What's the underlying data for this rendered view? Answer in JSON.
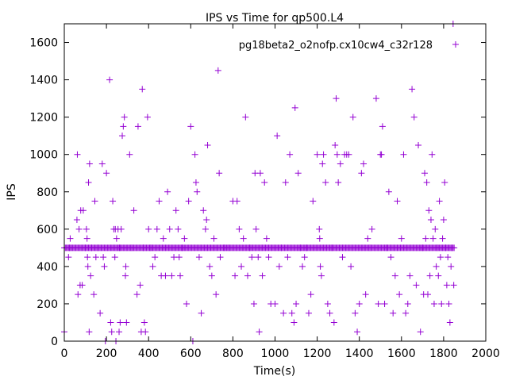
{
  "chart_data": {
    "type": "scatter",
    "title": "IPS vs Time for qp500.L4",
    "xlabel": "Time(s)",
    "ylabel": "IPS",
    "xlim": [
      0,
      2000
    ],
    "ylim": [
      0,
      1700
    ],
    "x_ticks": [
      0,
      200,
      400,
      600,
      800,
      1000,
      1200,
      1400,
      1600,
      1800,
      2000
    ],
    "y_ticks": [
      0,
      200,
      400,
      600,
      800,
      1000,
      1200,
      1400,
      1600
    ],
    "grid": false,
    "legend_position": "top-right",
    "marker": "+",
    "series": [
      {
        "name": "pg18beta2_o2nofp.cx10cw4_c32r128",
        "color": "#9400d3",
        "points": [
          [
            0,
            50
          ],
          [
            20,
            450
          ],
          [
            25,
            500
          ],
          [
            28,
            550
          ],
          [
            60,
            650
          ],
          [
            62,
            1000
          ],
          [
            65,
            250
          ],
          [
            70,
            600
          ],
          [
            75,
            300
          ],
          [
            78,
            700
          ],
          [
            85,
            300
          ],
          [
            90,
            700
          ],
          [
            100,
            500
          ],
          [
            105,
            600
          ],
          [
            108,
            550
          ],
          [
            110,
            450
          ],
          [
            112,
            400
          ],
          [
            115,
            850
          ],
          [
            118,
            50
          ],
          [
            120,
            950
          ],
          [
            125,
            350
          ],
          [
            130,
            500
          ],
          [
            140,
            250
          ],
          [
            145,
            750
          ],
          [
            150,
            450
          ],
          [
            160,
            500
          ],
          [
            170,
            150
          ],
          [
            180,
            950
          ],
          [
            185,
            450
          ],
          [
            190,
            400
          ],
          [
            195,
            0
          ],
          [
            200,
            900
          ],
          [
            215,
            1400
          ],
          [
            220,
            100
          ],
          [
            225,
            50
          ],
          [
            230,
            750
          ],
          [
            235,
            600
          ],
          [
            240,
            450
          ],
          [
            242,
            600
          ],
          [
            245,
            0
          ],
          [
            248,
            550
          ],
          [
            255,
            600
          ],
          [
            260,
            50
          ],
          [
            262,
            500
          ],
          [
            265,
            100
          ],
          [
            270,
            600
          ],
          [
            275,
            1100
          ],
          [
            280,
            1150
          ],
          [
            285,
            1200
          ],
          [
            290,
            350
          ],
          [
            292,
            400
          ],
          [
            295,
            100
          ],
          [
            310,
            1000
          ],
          [
            320,
            500
          ],
          [
            330,
            700
          ],
          [
            345,
            250
          ],
          [
            350,
            1150
          ],
          [
            360,
            300
          ],
          [
            365,
            50
          ],
          [
            370,
            1350
          ],
          [
            375,
            500
          ],
          [
            380,
            100
          ],
          [
            385,
            50
          ],
          [
            395,
            1200
          ],
          [
            400,
            600
          ],
          [
            410,
            500
          ],
          [
            420,
            400
          ],
          [
            430,
            450
          ],
          [
            440,
            600
          ],
          [
            450,
            750
          ],
          [
            460,
            350
          ],
          [
            470,
            550
          ],
          [
            480,
            350
          ],
          [
            490,
            800
          ],
          [
            500,
            600
          ],
          [
            510,
            350
          ],
          [
            520,
            450
          ],
          [
            530,
            700
          ],
          [
            540,
            600
          ],
          [
            545,
            450
          ],
          [
            550,
            350
          ],
          [
            560,
            500
          ],
          [
            570,
            550
          ],
          [
            580,
            200
          ],
          [
            590,
            750
          ],
          [
            600,
            1150
          ],
          [
            610,
            0
          ],
          [
            620,
            1000
          ],
          [
            625,
            850
          ],
          [
            630,
            800
          ],
          [
            640,
            450
          ],
          [
            650,
            150
          ],
          [
            660,
            700
          ],
          [
            670,
            600
          ],
          [
            675,
            650
          ],
          [
            680,
            1050
          ],
          [
            690,
            400
          ],
          [
            700,
            350
          ],
          [
            710,
            550
          ],
          [
            720,
            250
          ],
          [
            730,
            1450
          ],
          [
            735,
            900
          ],
          [
            740,
            450
          ],
          [
            760,
            500
          ],
          [
            780,
            500
          ],
          [
            800,
            750
          ],
          [
            810,
            350
          ],
          [
            820,
            750
          ],
          [
            830,
            600
          ],
          [
            840,
            400
          ],
          [
            850,
            550
          ],
          [
            860,
            1200
          ],
          [
            870,
            350
          ],
          [
            880,
            500
          ],
          [
            890,
            450
          ],
          [
            900,
            200
          ],
          [
            905,
            900
          ],
          [
            910,
            600
          ],
          [
            920,
            450
          ],
          [
            925,
            50
          ],
          [
            930,
            900
          ],
          [
            940,
            350
          ],
          [
            950,
            850
          ],
          [
            960,
            550
          ],
          [
            970,
            450
          ],
          [
            980,
            200
          ],
          [
            1000,
            200
          ],
          [
            1010,
            1100
          ],
          [
            1020,
            400
          ],
          [
            1030,
            500
          ],
          [
            1040,
            150
          ],
          [
            1050,
            850
          ],
          [
            1060,
            450
          ],
          [
            1070,
            1000
          ],
          [
            1080,
            150
          ],
          [
            1090,
            100
          ],
          [
            1095,
            1250
          ],
          [
            1100,
            200
          ],
          [
            1110,
            900
          ],
          [
            1120,
            500
          ],
          [
            1130,
            400
          ],
          [
            1140,
            450
          ],
          [
            1150,
            500
          ],
          [
            1160,
            150
          ],
          [
            1170,
            250
          ],
          [
            1180,
            750
          ],
          [
            1200,
            1000
          ],
          [
            1210,
            600
          ],
          [
            1212,
            550
          ],
          [
            1215,
            400
          ],
          [
            1220,
            350
          ],
          [
            1225,
            950
          ],
          [
            1230,
            1000
          ],
          [
            1240,
            850
          ],
          [
            1250,
            200
          ],
          [
            1260,
            150
          ],
          [
            1270,
            500
          ],
          [
            1280,
            100
          ],
          [
            1285,
            1050
          ],
          [
            1290,
            1300
          ],
          [
            1295,
            1000
          ],
          [
            1300,
            850
          ],
          [
            1310,
            950
          ],
          [
            1320,
            450
          ],
          [
            1330,
            1000
          ],
          [
            1340,
            1000
          ],
          [
            1350,
            1000
          ],
          [
            1360,
            400
          ],
          [
            1370,
            1200
          ],
          [
            1380,
            150
          ],
          [
            1390,
            50
          ],
          [
            1400,
            200
          ],
          [
            1410,
            900
          ],
          [
            1420,
            950
          ],
          [
            1430,
            250
          ],
          [
            1440,
            550
          ],
          [
            1450,
            500
          ],
          [
            1460,
            600
          ],
          [
            1480,
            1300
          ],
          [
            1490,
            200
          ],
          [
            1500,
            1000
          ],
          [
            1505,
            1000
          ],
          [
            1510,
            1150
          ],
          [
            1520,
            200
          ],
          [
            1530,
            500
          ],
          [
            1540,
            800
          ],
          [
            1550,
            450
          ],
          [
            1560,
            150
          ],
          [
            1570,
            350
          ],
          [
            1580,
            750
          ],
          [
            1590,
            250
          ],
          [
            1600,
            550
          ],
          [
            1610,
            1000
          ],
          [
            1620,
            150
          ],
          [
            1630,
            200
          ],
          [
            1640,
            350
          ],
          [
            1650,
            1350
          ],
          [
            1660,
            1200
          ],
          [
            1670,
            300
          ],
          [
            1680,
            1050
          ],
          [
            1690,
            50
          ],
          [
            1700,
            500
          ],
          [
            1705,
            250
          ],
          [
            1710,
            900
          ],
          [
            1715,
            550
          ],
          [
            1720,
            850
          ],
          [
            1725,
            250
          ],
          [
            1730,
            700
          ],
          [
            1735,
            350
          ],
          [
            1740,
            650
          ],
          [
            1745,
            1000
          ],
          [
            1750,
            550
          ],
          [
            1755,
            200
          ],
          [
            1760,
            600
          ],
          [
            1765,
            400
          ],
          [
            1770,
            500
          ],
          [
            1775,
            350
          ],
          [
            1780,
            750
          ],
          [
            1785,
            450
          ],
          [
            1790,
            200
          ],
          [
            1795,
            550
          ],
          [
            1800,
            650
          ],
          [
            1805,
            850
          ],
          [
            1810,
            500
          ],
          [
            1815,
            300
          ],
          [
            1820,
            450
          ],
          [
            1825,
            200
          ],
          [
            1830,
            100
          ],
          [
            1835,
            400
          ],
          [
            1840,
            500
          ],
          [
            1845,
            1700
          ],
          [
            1848,
            300
          ]
        ],
        "band_value": 500,
        "band_x": [
          0,
          1850
        ]
      }
    ]
  }
}
